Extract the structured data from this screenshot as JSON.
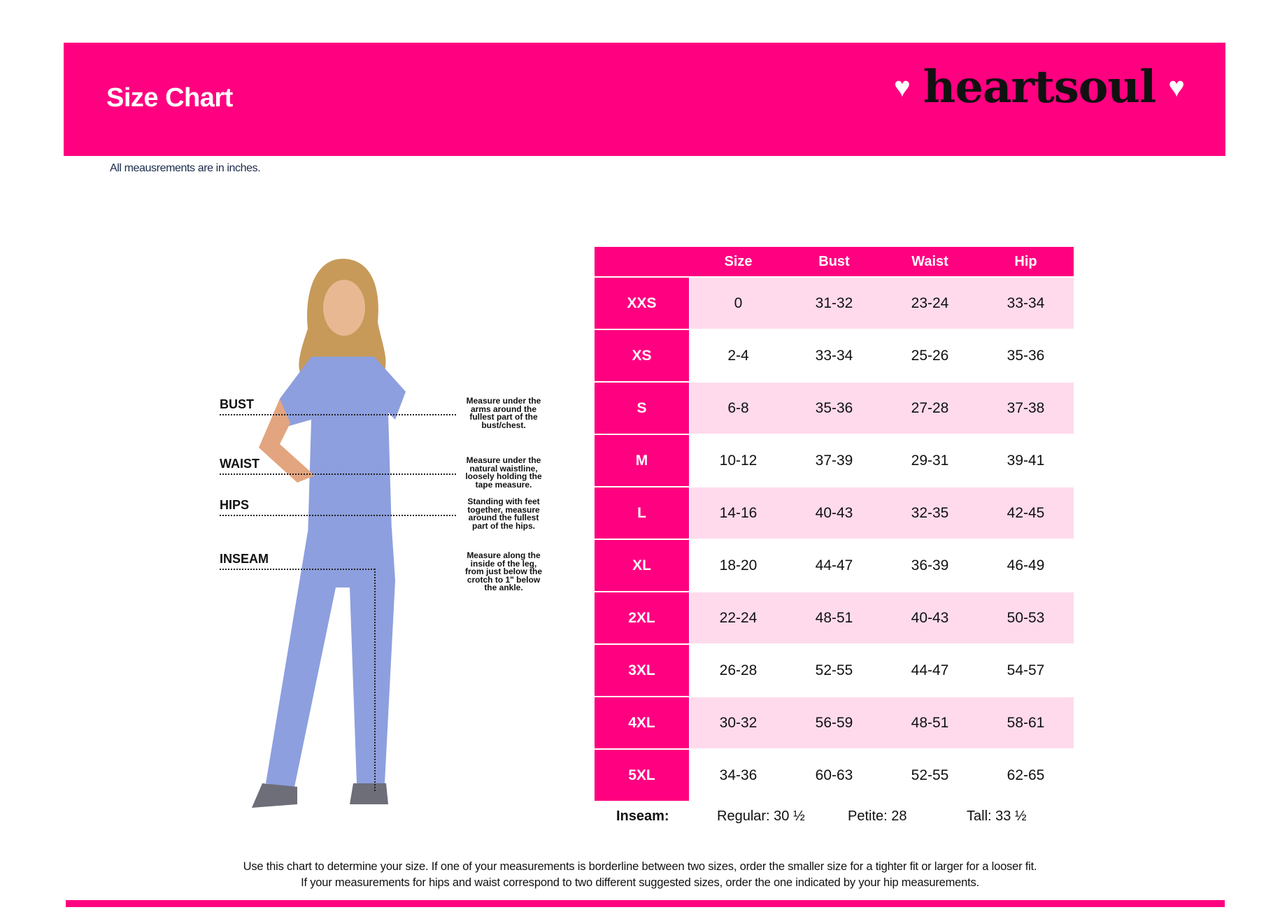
{
  "header": {
    "title": "Size Chart",
    "brand": "heartsoul",
    "brand_icon": "heart-icon",
    "accent": "#FF0080",
    "row_tint": "#FFDAEC"
  },
  "note": "All meausrements are in inches.",
  "measurements": [
    {
      "label": "BUST",
      "desc": "Measure under the arms around the fullest part of the bust/chest."
    },
    {
      "label": "WAIST",
      "desc": "Measure under the natural waistline, loosely holding the tape measure."
    },
    {
      "label": "HIPS",
      "desc": "Standing with feet together, measure around the fullest part of the hips."
    },
    {
      "label": "INSEAM",
      "desc": "Measure along the inside of the leg, from just below the crotch to 1\" below the ankle."
    }
  ],
  "table": {
    "columns": [
      "Size",
      "Bust",
      "Waist",
      "Hip"
    ],
    "rows": [
      {
        "label": "XXS",
        "cells": [
          "0",
          "31-32",
          "23-24",
          "33-34"
        ]
      },
      {
        "label": "XS",
        "cells": [
          "2-4",
          "33-34",
          "25-26",
          "35-36"
        ]
      },
      {
        "label": "S",
        "cells": [
          "6-8",
          "35-36",
          "27-28",
          "37-38"
        ]
      },
      {
        "label": "M",
        "cells": [
          "10-12",
          "37-39",
          "29-31",
          "39-41"
        ]
      },
      {
        "label": "L",
        "cells": [
          "14-16",
          "40-43",
          "32-35",
          "42-45"
        ]
      },
      {
        "label": "XL",
        "cells": [
          "18-20",
          "44-47",
          "36-39",
          "46-49"
        ]
      },
      {
        "label": "2XL",
        "cells": [
          "22-24",
          "48-51",
          "40-43",
          "50-53"
        ]
      },
      {
        "label": "3XL",
        "cells": [
          "26-28",
          "52-55",
          "44-47",
          "54-57"
        ]
      },
      {
        "label": "4XL",
        "cells": [
          "30-32",
          "56-59",
          "48-51",
          "58-61"
        ]
      },
      {
        "label": "5XL",
        "cells": [
          "34-36",
          "60-63",
          "52-55",
          "62-65"
        ]
      }
    ]
  },
  "inseam": {
    "label": "Inseam:",
    "regular": "Regular: 30 ½",
    "petite": "Petite: 28",
    "tall": "Tall: 33 ½"
  },
  "footer": {
    "line1": "Use this chart to determine your size. If one of your measurements is borderline between two sizes, order the smaller size for a tighter fit or larger for a looser fit.",
    "line2": "If your measurements for hips and waist correspond to two different suggested sizes, order the one indicated by your hip measurements."
  }
}
